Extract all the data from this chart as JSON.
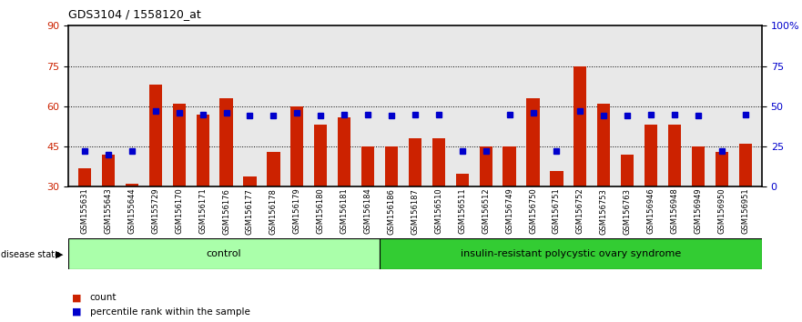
{
  "title": "GDS3104 / 1558120_at",
  "samples": [
    "GSM155631",
    "GSM155643",
    "GSM155644",
    "GSM155729",
    "GSM156170",
    "GSM156171",
    "GSM156176",
    "GSM156177",
    "GSM156178",
    "GSM156179",
    "GSM156180",
    "GSM156181",
    "GSM156184",
    "GSM156186",
    "GSM156187",
    "GSM156510",
    "GSM156511",
    "GSM156512",
    "GSM156749",
    "GSM156750",
    "GSM156751",
    "GSM156752",
    "GSM156753",
    "GSM156763",
    "GSM156946",
    "GSM156948",
    "GSM156949",
    "GSM156950",
    "GSM156951"
  ],
  "counts": [
    37,
    42,
    31,
    68,
    61,
    57,
    63,
    34,
    43,
    60,
    53,
    56,
    45,
    45,
    48,
    48,
    35,
    45,
    45,
    63,
    36,
    75,
    61,
    42,
    53,
    53,
    45,
    43,
    46
  ],
  "percentile_ranks": [
    22,
    20,
    22,
    47,
    46,
    45,
    46,
    44,
    44,
    46,
    44,
    45,
    45,
    44,
    45,
    45,
    22,
    22,
    45,
    46,
    22,
    47,
    44,
    44,
    45,
    45,
    44,
    22,
    45
  ],
  "control_count": 13,
  "disease_label": "insulin-resistant polycystic ovary syndrome",
  "control_label": "control",
  "bar_color": "#cc2200",
  "square_color": "#0000cc",
  "ylim_left": [
    30,
    90
  ],
  "ylim_right": [
    0,
    100
  ],
  "yticks_left": [
    30,
    45,
    60,
    75,
    90
  ],
  "yticks_right": [
    0,
    25,
    50,
    75,
    100
  ],
  "bg_color": "#e8e8e8",
  "control_bg": "#aaffaa",
  "disease_bg": "#33cc33",
  "legend_count": "count",
  "legend_pct": "percentile rank within the sample",
  "grid_lines": [
    45,
    60,
    75
  ]
}
